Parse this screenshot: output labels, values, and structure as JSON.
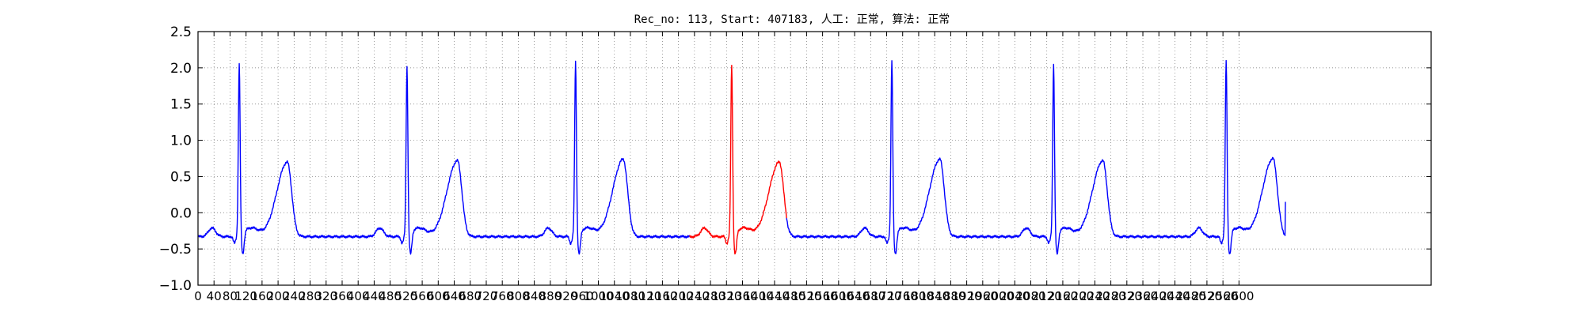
{
  "chart_data": {
    "type": "line",
    "title": "Rec_no: 113, Start: 407183, 人工: 正常, 算法: 正常",
    "xlabel": "",
    "ylabel": "",
    "xlim": [
      0,
      3080
    ],
    "ylim": [
      -1.0,
      2.5
    ],
    "yticks": [
      -1.0,
      -0.5,
      0.0,
      0.5,
      1.0,
      1.5,
      2.0,
      2.5
    ],
    "xtick_step": 40,
    "xtick_labels": [
      "0",
      "40",
      "80",
      "120",
      "160",
      "200",
      "240",
      "280",
      "320",
      "360",
      "400",
      "440",
      "480",
      "520",
      "560",
      "600",
      "640",
      "680",
      "720",
      "760",
      "800",
      "840",
      "880",
      "920",
      "960",
      "1000",
      "1040",
      "1080",
      "1120",
      "1160",
      "1200",
      "1240",
      "1280",
      "1320",
      "1360",
      "1400",
      "1440",
      "1480",
      "1520",
      "1560",
      "1600",
      "1640",
      "1680",
      "1720",
      "1760",
      "1800",
      "1840",
      "1880",
      "1920",
      "1960",
      "2000",
      "2040",
      "2080",
      "2120",
      "2160",
      "2200",
      "2240",
      "2280",
      "2320",
      "2360",
      "2400",
      "2440",
      "2480",
      "2520",
      "2560",
      "2600"
    ],
    "grid": true,
    "baseline": -0.33,
    "beats": [
      {
        "r_x": 103,
        "r_peak": 2.04,
        "t_x": 223,
        "t_peak": 0.8,
        "color": "#0000ff"
      },
      {
        "r_x": 522,
        "r_peak": 1.99,
        "t_x": 648,
        "t_peak": 0.82,
        "color": "#0000ff"
      },
      {
        "r_x": 943,
        "r_peak": 2.06,
        "t_x": 1062,
        "t_peak": 0.84,
        "color": "#0000ff"
      },
      {
        "r_x": 1333,
        "r_peak": 2.02,
        "t_x": 1452,
        "t_peak": 0.8,
        "color": "#ff0000"
      },
      {
        "r_x": 1733,
        "r_peak": 2.08,
        "t_x": 1853,
        "t_peak": 0.84,
        "color": "#0000ff"
      },
      {
        "r_x": 2137,
        "r_peak": 2.02,
        "t_x": 2260,
        "t_peak": 0.82,
        "color": "#0000ff"
      },
      {
        "r_x": 2568,
        "r_peak": 2.08,
        "t_x": 2685,
        "t_peak": 0.85,
        "color": "#0000ff"
      }
    ],
    "series": [
      {
        "color": "#0000ff",
        "x_range": [
          0,
          1228
        ]
      },
      {
        "color": "#ff0000",
        "x_range": [
          1228,
          1470
        ]
      },
      {
        "color": "#0000ff",
        "x_range": [
          1470,
          2716
        ]
      }
    ],
    "end_value": 0.15
  }
}
